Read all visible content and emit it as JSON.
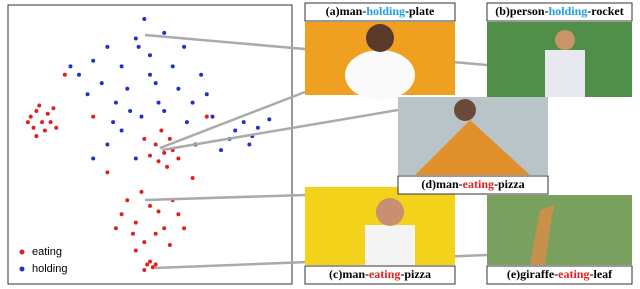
{
  "chart_data": {
    "type": "scatter",
    "xlim": [
      0,
      100
    ],
    "ylim": [
      0,
      100
    ],
    "legend": "lower left",
    "series": [
      {
        "name": "eating",
        "color": "#e02020",
        "x": [
          8,
          10,
          12,
          14,
          9,
          13,
          11,
          15,
          7,
          16,
          10,
          17,
          52,
          55,
          57,
          53,
          50,
          56,
          58,
          54,
          60,
          48,
          40,
          45,
          50,
          55,
          60,
          48,
          52,
          42,
          58,
          62,
          38,
          47,
          53,
          45,
          57,
          44,
          49,
          51,
          50,
          52,
          48,
          30,
          70,
          35,
          65,
          20
        ],
        "y": [
          60,
          62,
          58,
          61,
          56,
          55,
          64,
          58,
          58,
          63,
          53,
          56,
          50,
          47,
          52,
          44,
          46,
          42,
          48,
          55,
          45,
          52,
          25,
          22,
          28,
          20,
          25,
          15,
          18,
          30,
          30,
          20,
          20,
          33,
          26,
          12,
          14,
          18,
          7,
          6,
          8,
          7,
          5,
          60,
          60,
          40,
          38,
          75
        ]
      },
      {
        "name": "holding",
        "color": "#2030d0",
        "x": [
          30,
          35,
          40,
          45,
          50,
          55,
          48,
          42,
          38,
          33,
          25,
          28,
          52,
          58,
          62,
          60,
          65,
          55,
          47,
          40,
          35,
          45,
          30,
          68,
          70,
          72,
          50,
          43,
          37,
          22,
          80,
          83,
          86,
          88,
          92,
          78,
          85,
          75,
          66,
          63,
          46,
          53
        ],
        "y": [
          80,
          85,
          78,
          88,
          82,
          90,
          95,
          70,
          65,
          72,
          75,
          68,
          72,
          78,
          85,
          70,
          65,
          62,
          60,
          55,
          50,
          45,
          45,
          75,
          68,
          60,
          75,
          62,
          58,
          78,
          55,
          58,
          53,
          56,
          59,
          52,
          50,
          48,
          50,
          58,
          85,
          65
        ]
      }
    ]
  },
  "panels": [
    {
      "caption": [
        "(a)man-",
        "holding",
        "-plate"
      ],
      "highlight_color": "#1e9fe0"
    },
    {
      "caption": [
        "(b)person-",
        "holding",
        "-rocket"
      ],
      "highlight_color": "#1e9fe0"
    },
    {
      "caption": [
        "(d)man-",
        "eating",
        "-pizza"
      ],
      "highlight_color": "#e02020"
    },
    {
      "caption": [
        "(c)man-",
        "eating",
        "-pizza"
      ],
      "highlight_color": "#e02020"
    },
    {
      "caption": [
        "(e)giraffe-",
        "eating",
        "-leaf"
      ],
      "highlight_color": "#e02020"
    }
  ]
}
